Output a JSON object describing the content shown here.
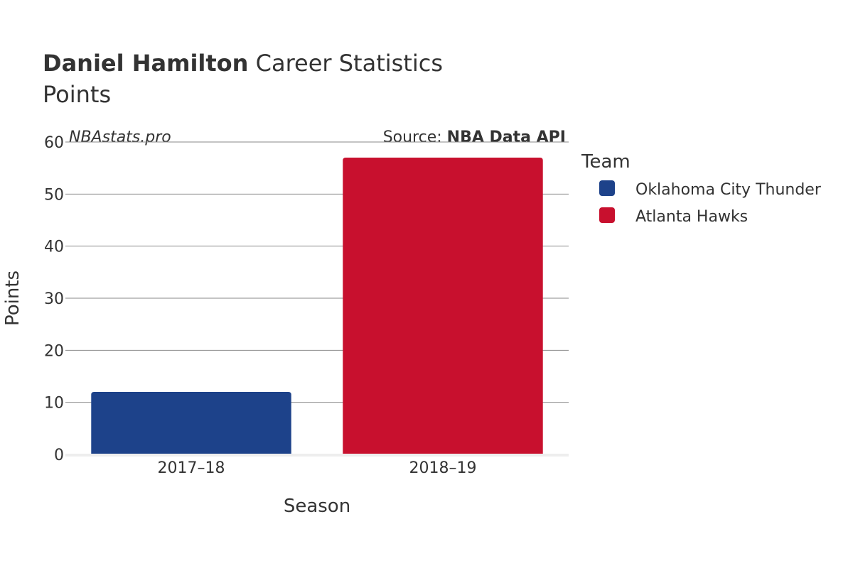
{
  "title": {
    "player_name": "Daniel Hamilton",
    "title_rest": " Career Statistics",
    "subtitle": "Points"
  },
  "watermark": "NBAstats.pro",
  "source": {
    "prefix": "Source: ",
    "name": "NBA Data API"
  },
  "legend": {
    "title": "Team"
  },
  "chart_data": {
    "type": "bar",
    "categories": [
      "2017–18",
      "2018–19"
    ],
    "series": [
      {
        "name": "Oklahoma City Thunder",
        "color": "#1d428a",
        "values": [
          12,
          null
        ]
      },
      {
        "name": "Atlanta Hawks",
        "color": "#c8102e",
        "values": [
          null,
          57
        ]
      }
    ],
    "xlabel": "Season",
    "ylabel": "Points",
    "ylim": [
      0,
      60
    ],
    "yticks": [
      0,
      10,
      20,
      30,
      40,
      50,
      60
    ],
    "grid": true,
    "legend_position": "right"
  }
}
